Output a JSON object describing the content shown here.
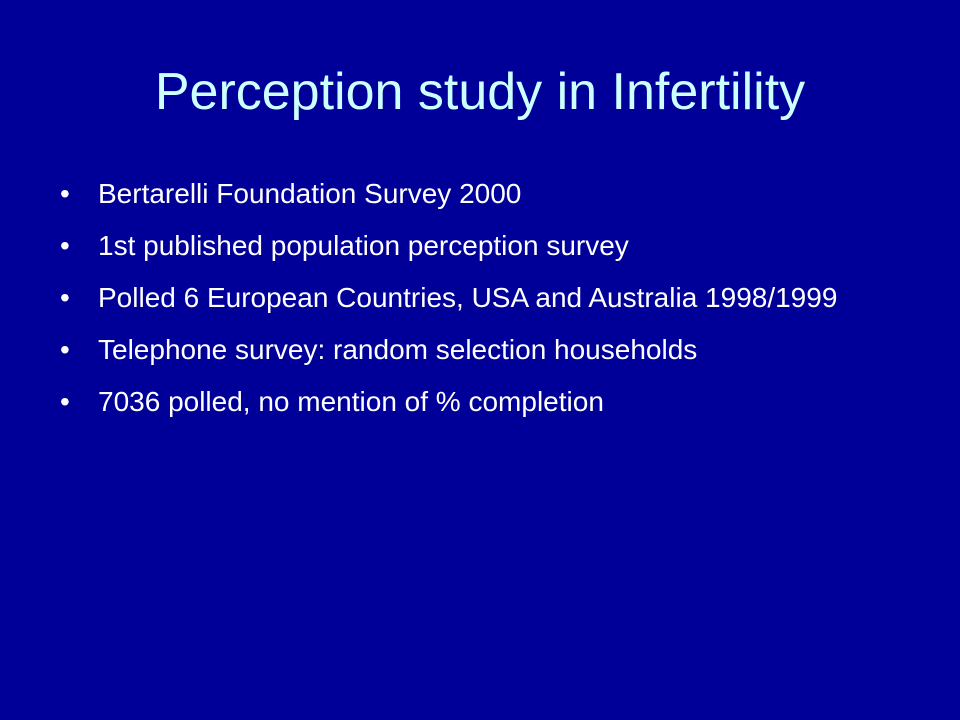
{
  "slide": {
    "title": "Perception study in Infertility",
    "bullet_glyph": "•",
    "bullets": [
      "Bertarelli Foundation Survey 2000",
      "1st published population perception survey",
      "Polled 6 European Countries, USA and Australia 1998/1999",
      "Telephone survey: random selection households",
      "7036 polled, no mention of % completion"
    ]
  },
  "colors": {
    "background": "#000099",
    "title": "#ccffff",
    "body_text": "#ffffff"
  }
}
